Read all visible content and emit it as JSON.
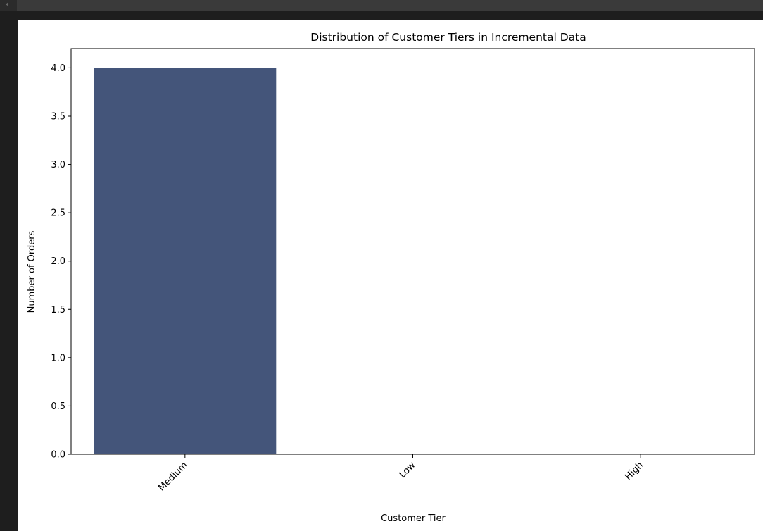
{
  "colors": {
    "bar": "#44557a",
    "background": "#1e1e1e",
    "plot_background": "#ffffff"
  },
  "chart_data": {
    "type": "bar",
    "title": "Distribution of Customer Tiers in Incremental Data",
    "xlabel": "Customer Tier",
    "ylabel": "Number of Orders",
    "categories": [
      "Medium",
      "Low",
      "High"
    ],
    "values": [
      4,
      0,
      0
    ],
    "ylim": [
      0,
      4.2
    ],
    "yticks": [
      "0.0",
      "0.5",
      "1.0",
      "1.5",
      "2.0",
      "2.5",
      "3.0",
      "3.5",
      "4.0"
    ],
    "ytick_values": [
      0,
      0.5,
      1,
      1.5,
      2,
      2.5,
      3,
      3.5,
      4
    ],
    "xtick_rotation_deg": 45,
    "grid": false,
    "legend": "none"
  }
}
